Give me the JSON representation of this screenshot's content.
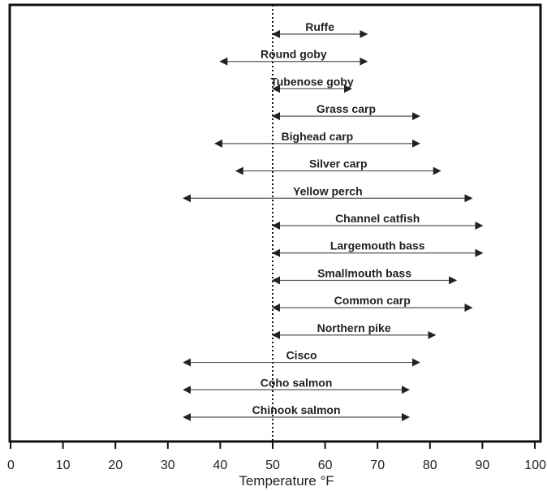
{
  "chart_data": {
    "type": "range",
    "title": "",
    "xlabel": "Temperature °F",
    "ylabel": "",
    "xlim": [
      0,
      100
    ],
    "xticks": [
      "0",
      "10",
      "20",
      "30",
      "40",
      "50",
      "60",
      "70",
      "80",
      "90",
      "100"
    ],
    "reference_line": {
      "x": 50,
      "style": "dotted"
    },
    "grid": false,
    "legend": "none",
    "colors": {
      "range_line": "#555555",
      "axis": "#111111",
      "reference": "#111111"
    },
    "series": [
      {
        "name": "Ruffe",
        "min": 50,
        "max": 68
      },
      {
        "name": "Round goby",
        "min": 40,
        "max": 68
      },
      {
        "name": "Tubenose goby",
        "min": 50,
        "max": 65
      },
      {
        "name": "Grass carp",
        "min": 50,
        "max": 78
      },
      {
        "name": "Bighead carp",
        "min": 39,
        "max": 78
      },
      {
        "name": "Silver carp",
        "min": 43,
        "max": 82
      },
      {
        "name": "Yellow perch",
        "min": 33,
        "max": 88
      },
      {
        "name": "Channel catfish",
        "min": 50,
        "max": 90
      },
      {
        "name": "Largemouth bass",
        "min": 50,
        "max": 90
      },
      {
        "name": "Smallmouth bass",
        "min": 50,
        "max": 85
      },
      {
        "name": "Common carp",
        "min": 50,
        "max": 88
      },
      {
        "name": "Northern pike",
        "min": 50,
        "max": 81
      },
      {
        "name": "Cisco",
        "min": 33,
        "max": 78
      },
      {
        "name": "Coho salmon",
        "min": 33,
        "max": 76
      },
      {
        "name": "Chinook salmon",
        "min": 33,
        "max": 76
      }
    ]
  }
}
